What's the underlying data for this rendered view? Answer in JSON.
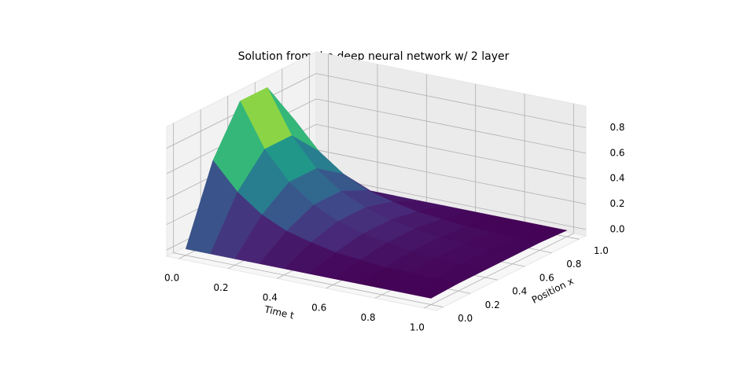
{
  "chart_data": {
    "type": "surface",
    "title": "Solution from the deep neural network w/ 2 layer",
    "xlabel": "Time t",
    "ylabel": "Position x",
    "t": [
      0,
      0.1,
      0.2,
      0.3,
      0.4,
      0.5,
      0.6,
      0.7,
      0.8,
      0.9,
      1.0
    ],
    "x": [
      0,
      0.2,
      0.4,
      0.6,
      0.8,
      1.0
    ],
    "z": [
      [
        0,
        0.59,
        0.95,
        0.95,
        0.59,
        0
      ],
      [
        0,
        0.38,
        0.61,
        0.61,
        0.38,
        0
      ],
      [
        0,
        0.24,
        0.39,
        0.39,
        0.24,
        0
      ],
      [
        0,
        0.15,
        0.25,
        0.25,
        0.15,
        0
      ],
      [
        0,
        0.1,
        0.16,
        0.16,
        0.1,
        0
      ],
      [
        0,
        0.06,
        0.1,
        0.1,
        0.06,
        0
      ],
      [
        0,
        0.04,
        0.07,
        0.07,
        0.04,
        0
      ],
      [
        0,
        0.02,
        0.04,
        0.04,
        0.02,
        0
      ],
      [
        0,
        0.02,
        0.03,
        0.03,
        0.02,
        0
      ],
      [
        0,
        0.01,
        0.02,
        0.02,
        0.01,
        0
      ],
      [
        0,
        0.01,
        0.01,
        0.01,
        0.01,
        0
      ]
    ],
    "colormap": "viridis",
    "tlim": [
      -0.05,
      1.05
    ],
    "tticks": [
      {
        "value": 0,
        "label": "0.0"
      },
      0.2,
      0.4,
      0.6,
      0.8,
      {
        "value": 1,
        "label": "1.0"
      }
    ],
    "xlim": [
      -0.05,
      1.05
    ],
    "xticks": [
      {
        "value": 0,
        "label": "0.0"
      },
      0.2,
      0.4,
      0.6,
      0.8,
      {
        "value": 1,
        "label": "1.0"
      }
    ],
    "zlim": [
      -0.05,
      0.97
    ],
    "zticks": [
      {
        "value": 0,
        "label": "0.0"
      },
      0.2,
      0.4,
      0.6,
      0.8
    ],
    "grid": true
  }
}
